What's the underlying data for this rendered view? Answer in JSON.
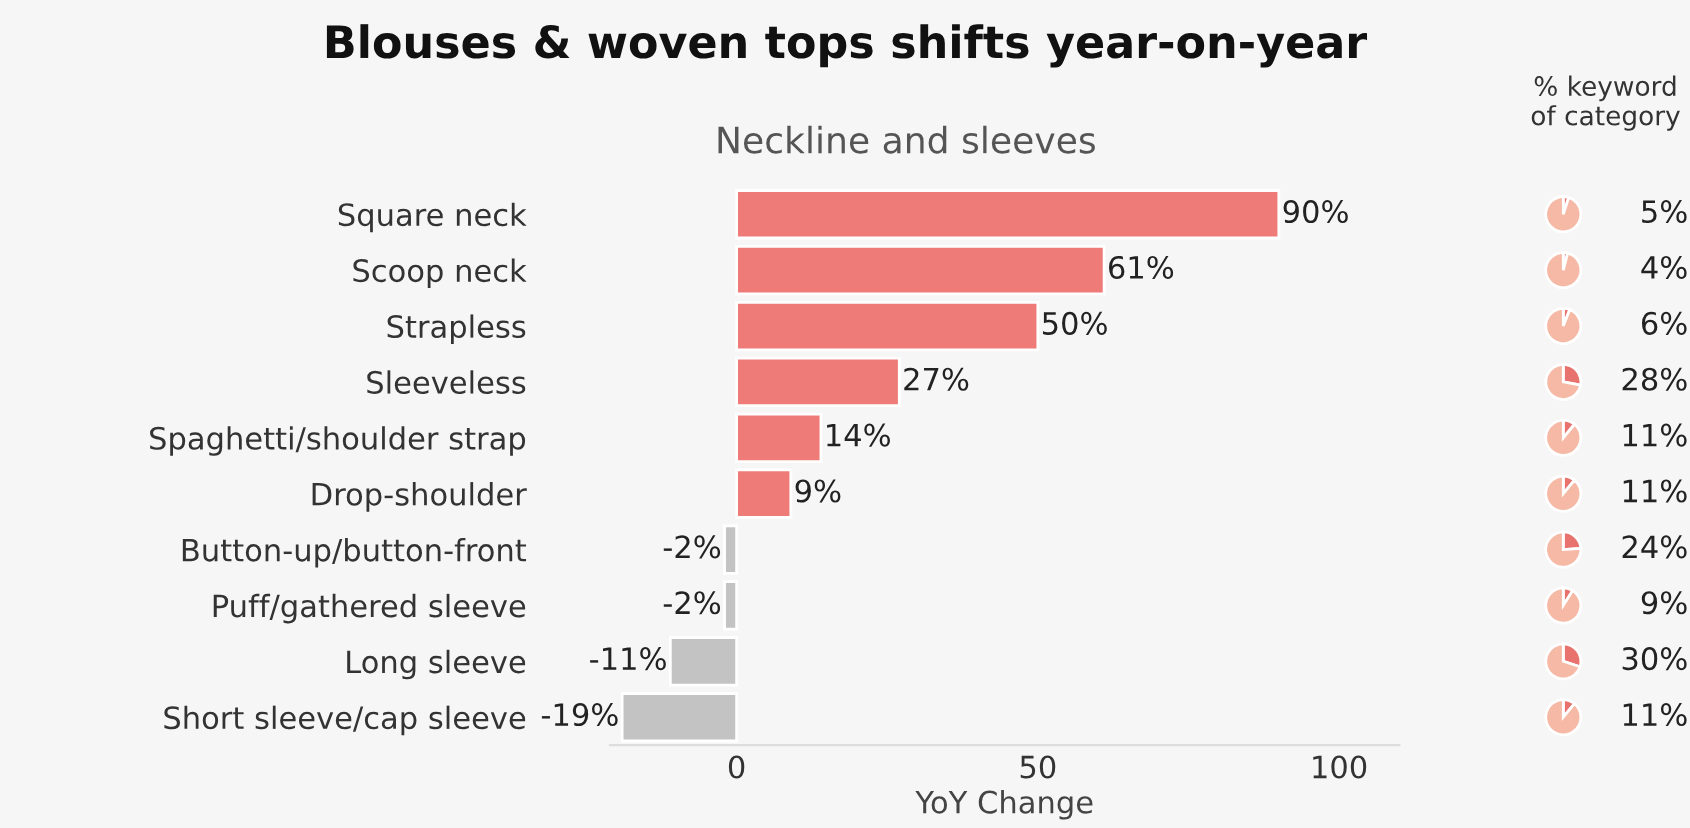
{
  "chart_data": [
    {
      "type": "bar",
      "orientation": "horizontal",
      "title": "Blouses & woven tops shifts year-on-year",
      "subtitle": "Neckline and sleeves",
      "xlabel": "YoY Change",
      "categories": [
        "Square neck",
        "Scoop neck",
        "Strapless",
        "Sleeveless",
        "Spaghetti/shoulder strap",
        "Drop-shoulder",
        "Button-up/button-front",
        "Puff/gathered sleeve",
        "Long sleeve",
        "Short sleeve/cap sleeve"
      ],
      "values": [
        90,
        61,
        50,
        27,
        14,
        9,
        -2,
        -2,
        -11,
        -19
      ],
      "value_labels": [
        "90%",
        "61%",
        "50%",
        "27%",
        "14%",
        "9%",
        "-2%",
        "-2%",
        "-11%",
        "-19%"
      ],
      "colors": [
        "#ef7b78",
        "#ef7b78",
        "#ef7b78",
        "#ef7b78",
        "#ef7b78",
        "#ef7b78",
        "#c3c3c3",
        "#c3c3c3",
        "#c3c3c3",
        "#c3c3c3"
      ],
      "xlim": [
        -21,
        110
      ],
      "xticks": [
        0,
        50,
        100
      ],
      "grid": false,
      "legend": false
    },
    {
      "type": "other",
      "title": "% keyword\nof category",
      "values": [
        5,
        4,
        6,
        28,
        11,
        11,
        24,
        9,
        30,
        11
      ],
      "value_labels": [
        "5%",
        "4%",
        "6%",
        "28%",
        "11%",
        "11%",
        "24%",
        "9%",
        "30%",
        "11%"
      ],
      "colors": [
        "#e8726e",
        "#e8726e",
        "#e8726e",
        "#e8726e",
        "#e8726e",
        "#e8726e",
        "#e8726e",
        "#e8726e",
        "#e8726e",
        "#e8726e"
      ]
    }
  ]
}
